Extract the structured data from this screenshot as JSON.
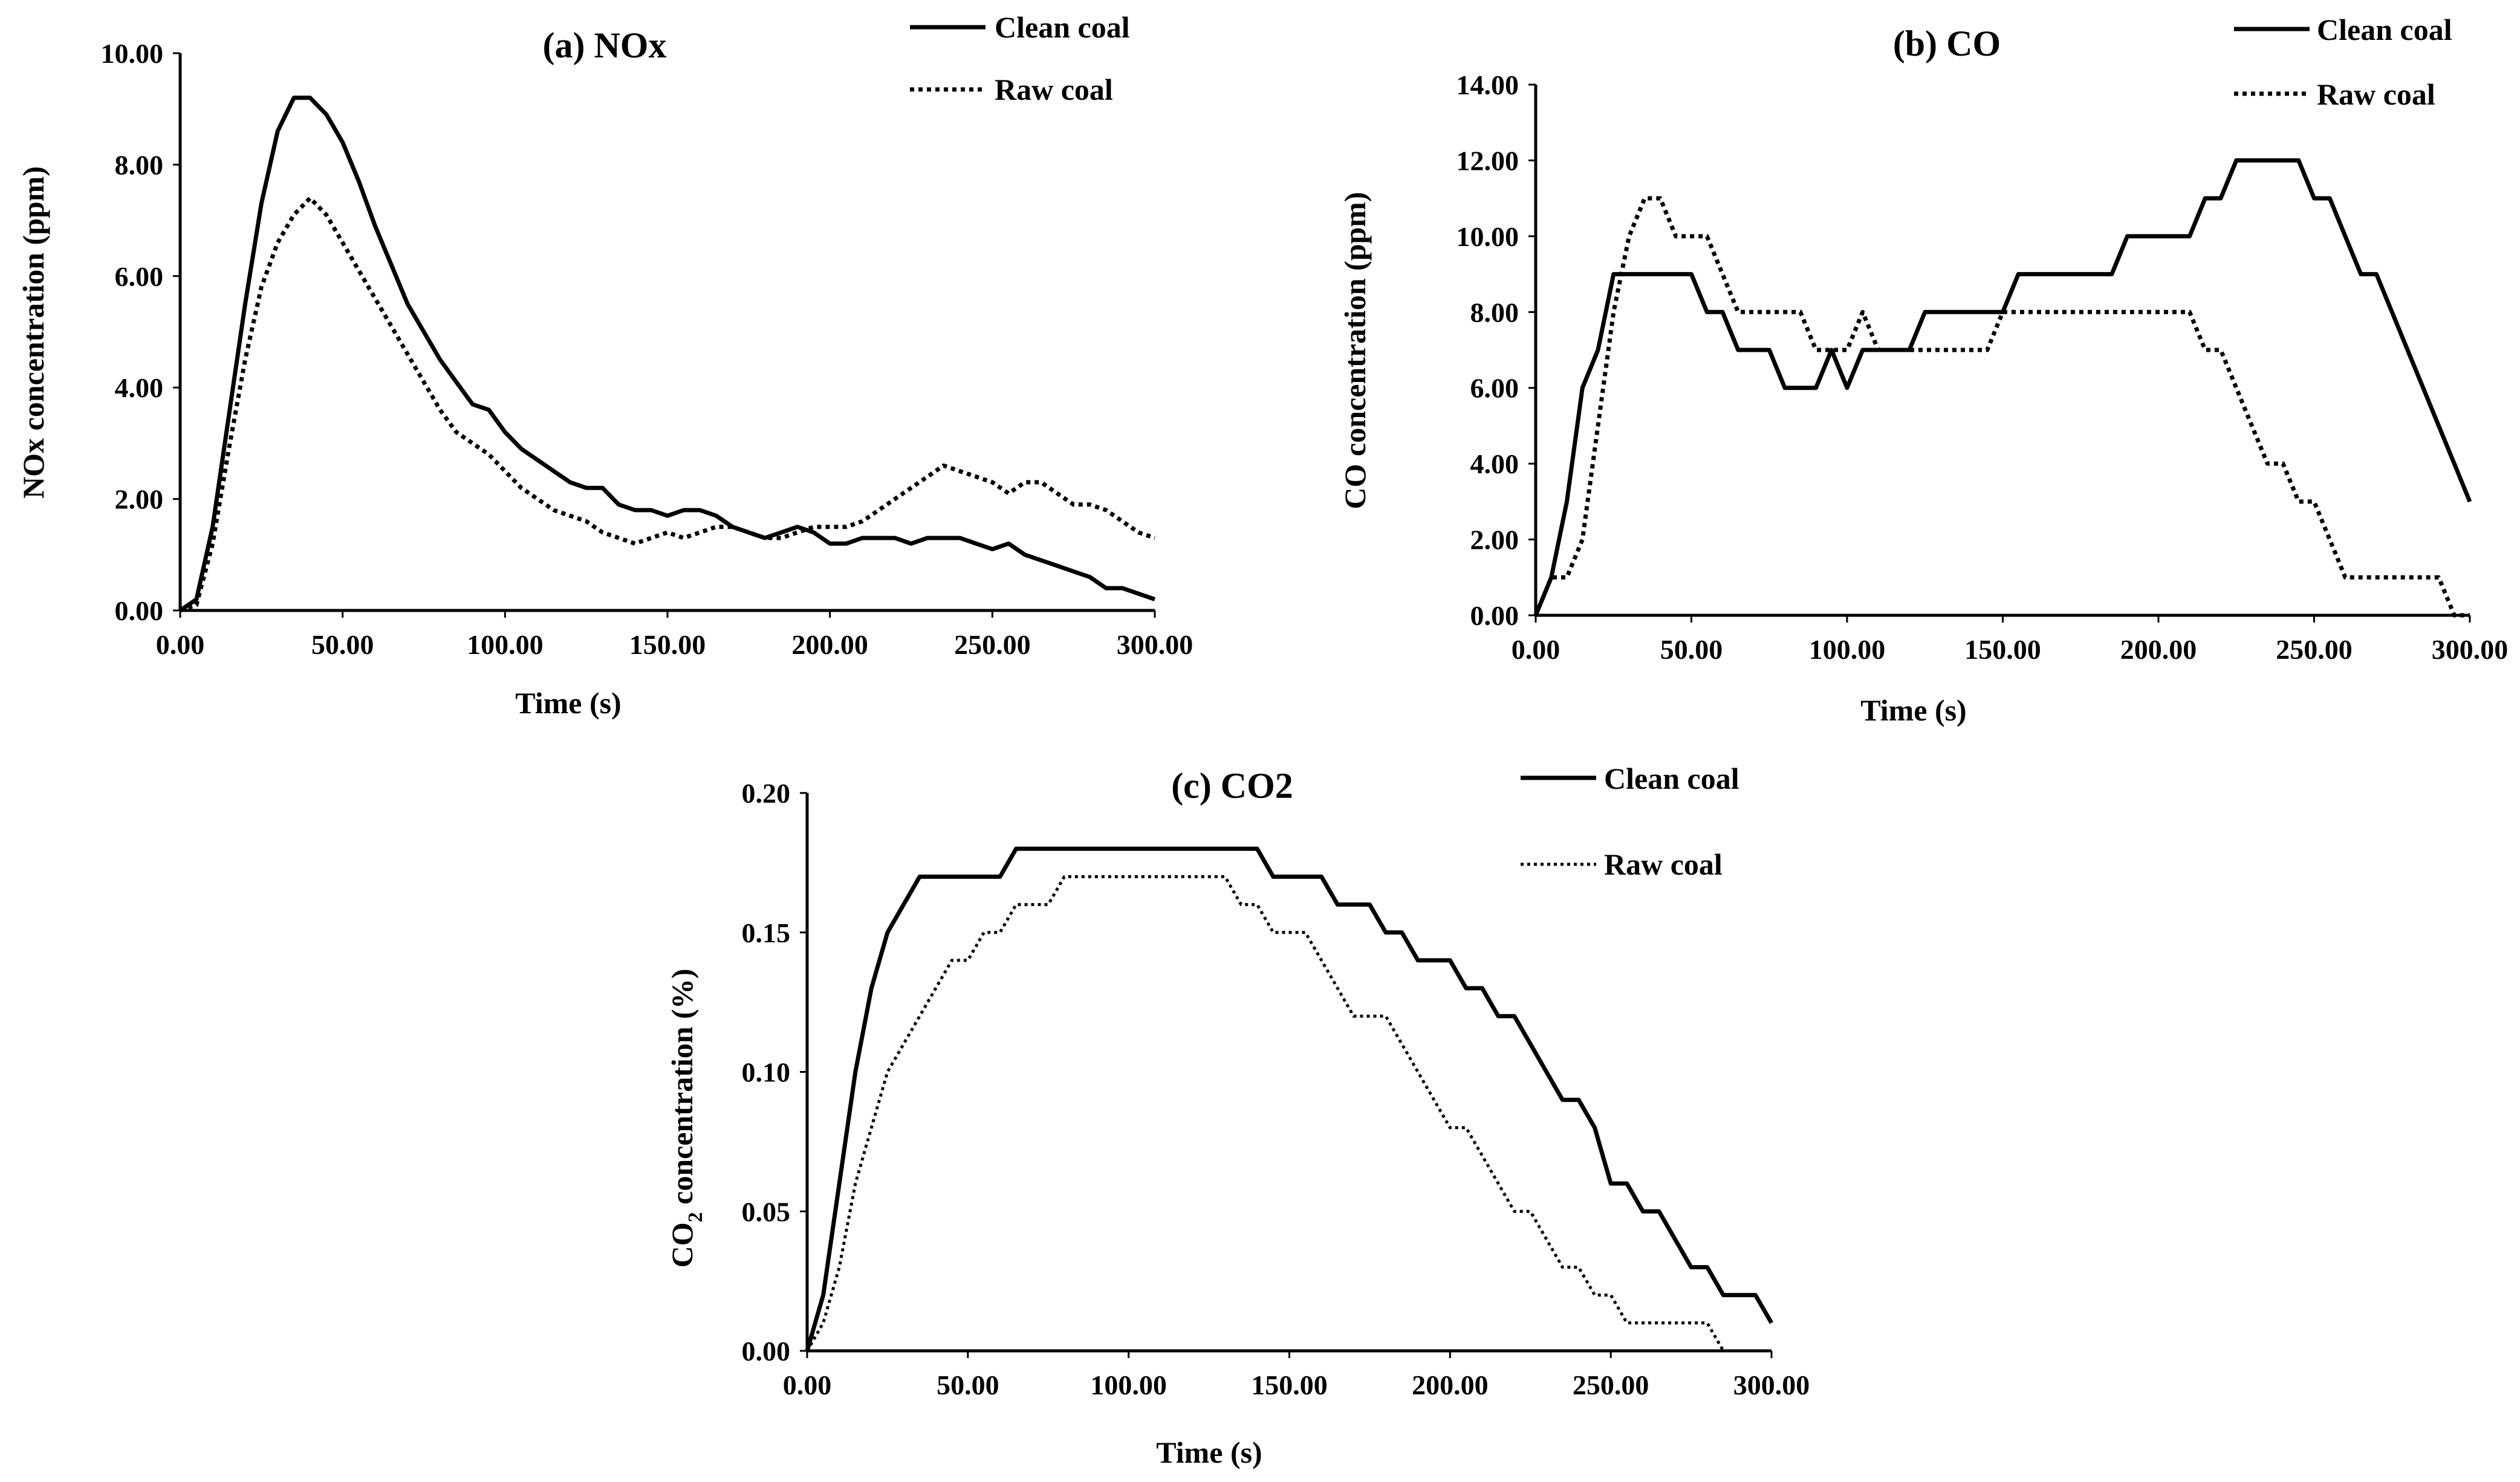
{
  "figure": {
    "colors": {
      "ink": "#000000",
      "background": "#ffffff"
    },
    "series_styles": {
      "clean": "solid",
      "raw": "dotted"
    }
  },
  "chart_data": [
    {
      "id": "nox",
      "type": "line",
      "title": "(a) NOx",
      "xlabel": "Time (s)",
      "ylabel": "NOx concentration (ppm)",
      "xlim": [
        0,
        300
      ],
      "ylim": [
        0,
        10
      ],
      "xticks": [
        "0.00",
        "50.00",
        "100.00",
        "150.00",
        "200.00",
        "250.00",
        "300.00"
      ],
      "yticks": [
        "0.00",
        "2.00",
        "4.00",
        "6.00",
        "8.00",
        "10.00"
      ],
      "legend": [
        "Clean coal",
        "Raw coal"
      ],
      "legend_position": "top-right",
      "series": [
        {
          "name": "Clean coal",
          "style": "solid",
          "x": [
            0,
            5,
            10,
            15,
            20,
            25,
            30,
            35,
            40,
            45,
            50,
            55,
            60,
            65,
            70,
            75,
            80,
            85,
            90,
            95,
            100,
            105,
            110,
            115,
            120,
            125,
            130,
            135,
            140,
            145,
            150,
            155,
            160,
            165,
            170,
            175,
            180,
            185,
            190,
            195,
            200,
            205,
            210,
            215,
            220,
            225,
            230,
            235,
            240,
            245,
            250,
            255,
            260,
            265,
            270,
            275,
            280,
            285,
            290,
            295,
            300
          ],
          "y": [
            0,
            0.2,
            1.5,
            3.5,
            5.5,
            7.3,
            8.6,
            9.2,
            9.2,
            8.9,
            8.4,
            7.7,
            6.9,
            6.2,
            5.5,
            5.0,
            4.5,
            4.1,
            3.7,
            3.6,
            3.2,
            2.9,
            2.7,
            2.5,
            2.3,
            2.2,
            2.2,
            1.9,
            1.8,
            1.8,
            1.7,
            1.8,
            1.8,
            1.7,
            1.5,
            1.4,
            1.3,
            1.4,
            1.5,
            1.4,
            1.2,
            1.2,
            1.3,
            1.3,
            1.3,
            1.2,
            1.3,
            1.3,
            1.3,
            1.2,
            1.1,
            1.2,
            1.0,
            0.9,
            0.8,
            0.7,
            0.6,
            0.4,
            0.4,
            0.3,
            0.2
          ]
        },
        {
          "name": "Raw coal",
          "style": "dotted",
          "x": [
            0,
            5,
            10,
            15,
            20,
            25,
            30,
            35,
            40,
            45,
            50,
            55,
            60,
            65,
            70,
            75,
            80,
            85,
            90,
            95,
            100,
            105,
            110,
            115,
            120,
            125,
            130,
            135,
            140,
            145,
            150,
            155,
            160,
            165,
            170,
            175,
            180,
            185,
            190,
            195,
            200,
            205,
            210,
            215,
            220,
            225,
            230,
            235,
            240,
            245,
            250,
            255,
            260,
            265,
            270,
            275,
            280,
            285,
            290,
            295,
            300
          ],
          "y": [
            0,
            0.1,
            1.2,
            2.9,
            4.5,
            5.8,
            6.6,
            7.1,
            7.4,
            7.1,
            6.6,
            6.1,
            5.6,
            5.1,
            4.6,
            4.1,
            3.6,
            3.2,
            3.0,
            2.8,
            2.5,
            2.2,
            2.0,
            1.8,
            1.7,
            1.6,
            1.4,
            1.3,
            1.2,
            1.3,
            1.4,
            1.3,
            1.4,
            1.5,
            1.5,
            1.4,
            1.3,
            1.3,
            1.4,
            1.5,
            1.5,
            1.5,
            1.6,
            1.8,
            2.0,
            2.2,
            2.4,
            2.6,
            2.5,
            2.4,
            2.3,
            2.1,
            2.3,
            2.3,
            2.1,
            1.9,
            1.9,
            1.8,
            1.6,
            1.4,
            1.3
          ]
        }
      ]
    },
    {
      "id": "co",
      "type": "line",
      "title": "(b) CO",
      "xlabel": "Time (s)",
      "ylabel": "CO concentration  (ppm)",
      "xlim": [
        0,
        300
      ],
      "ylim": [
        0,
        14
      ],
      "xticks": [
        "0.00",
        "50.00",
        "100.00",
        "150.00",
        "200.00",
        "250.00",
        "300.00"
      ],
      "yticks": [
        "0.00",
        "2.00",
        "4.00",
        "6.00",
        "8.00",
        "10.00",
        "12.00",
        "14.00"
      ],
      "legend": [
        "Clean coal",
        "Raw coal"
      ],
      "legend_position": "top-right",
      "series": [
        {
          "name": "Clean coal",
          "style": "solid",
          "x": [
            0,
            5,
            10,
            15,
            20,
            25,
            30,
            35,
            40,
            45,
            50,
            55,
            60,
            65,
            70,
            75,
            80,
            85,
            90,
            95,
            100,
            105,
            110,
            115,
            120,
            125,
            130,
            135,
            140,
            145,
            150,
            155,
            160,
            165,
            170,
            175,
            180,
            185,
            190,
            195,
            200,
            205,
            210,
            215,
            220,
            225,
            230,
            235,
            240,
            245,
            250,
            255,
            260,
            265,
            270,
            275,
            280,
            285,
            290,
            295,
            300
          ],
          "y": [
            0,
            1,
            3,
            6,
            7,
            9,
            9,
            9,
            9,
            9,
            9,
            8,
            8,
            7,
            7,
            7,
            6,
            6,
            6,
            7,
            6,
            7,
            7,
            7,
            7,
            8,
            8,
            8,
            8,
            8,
            8,
            9,
            9,
            9,
            9,
            9,
            9,
            9,
            10,
            10,
            10,
            10,
            10,
            11,
            11,
            12,
            12,
            12,
            12,
            12,
            11,
            11,
            10,
            9,
            9,
            8,
            7,
            6,
            5,
            4,
            3
          ]
        },
        {
          "name": "Raw coal",
          "style": "dotted",
          "x": [
            0,
            5,
            10,
            15,
            20,
            25,
            30,
            35,
            40,
            45,
            50,
            55,
            60,
            65,
            70,
            75,
            80,
            85,
            90,
            95,
            100,
            105,
            110,
            115,
            120,
            125,
            130,
            135,
            140,
            145,
            150,
            155,
            160,
            165,
            170,
            175,
            180,
            185,
            190,
            195,
            200,
            205,
            210,
            215,
            220,
            225,
            230,
            235,
            240,
            245,
            250,
            255,
            260,
            265,
            270,
            275,
            280,
            285,
            290,
            295,
            300
          ],
          "y": [
            0,
            1,
            1,
            2,
            5,
            8,
            10,
            11,
            11,
            10,
            10,
            10,
            9,
            8,
            8,
            8,
            8,
            8,
            7,
            7,
            7,
            8,
            7,
            7,
            7,
            7,
            7,
            7,
            7,
            7,
            8,
            8,
            8,
            8,
            8,
            8,
            8,
            8,
            8,
            8,
            8,
            8,
            8,
            7,
            7,
            6,
            5,
            4,
            4,
            3,
            3,
            2,
            1,
            1,
            1,
            1,
            1,
            1,
            1,
            0,
            0
          ]
        }
      ]
    },
    {
      "id": "co2",
      "type": "line",
      "title": "(c) CO2",
      "xlabel": "Time (s)",
      "ylabel_main": "CO",
      "ylabel_sub": "2",
      "ylabel_rest": " concentration  (%)",
      "xlim": [
        0,
        300
      ],
      "ylim": [
        0,
        0.2
      ],
      "xticks": [
        "0.00",
        "50.00",
        "100.00",
        "150.00",
        "200.00",
        "250.00",
        "300.00"
      ],
      "yticks": [
        "0.00",
        "0.05",
        "0.10",
        "0.15",
        "0.20"
      ],
      "legend": [
        "Clean coal",
        "Raw coal"
      ],
      "legend_position": "top-right",
      "series": [
        {
          "name": "Clean coal",
          "style": "solid",
          "x": [
            0,
            5,
            10,
            15,
            20,
            25,
            30,
            35,
            40,
            45,
            50,
            55,
            60,
            65,
            70,
            75,
            80,
            85,
            90,
            95,
            100,
            105,
            110,
            115,
            120,
            125,
            130,
            135,
            140,
            145,
            150,
            155,
            160,
            165,
            170,
            175,
            180,
            185,
            190,
            195,
            200,
            205,
            210,
            215,
            220,
            225,
            230,
            235,
            240,
            245,
            250,
            255,
            260,
            265,
            270,
            275,
            280,
            285,
            290,
            295,
            300
          ],
          "y": [
            0,
            0.02,
            0.06,
            0.1,
            0.13,
            0.15,
            0.16,
            0.17,
            0.17,
            0.17,
            0.17,
            0.17,
            0.17,
            0.18,
            0.18,
            0.18,
            0.18,
            0.18,
            0.18,
            0.18,
            0.18,
            0.18,
            0.18,
            0.18,
            0.18,
            0.18,
            0.18,
            0.18,
            0.18,
            0.17,
            0.17,
            0.17,
            0.17,
            0.16,
            0.16,
            0.16,
            0.15,
            0.15,
            0.14,
            0.14,
            0.14,
            0.13,
            0.13,
            0.12,
            0.12,
            0.11,
            0.1,
            0.09,
            0.09,
            0.08,
            0.06,
            0.06,
            0.05,
            0.05,
            0.04,
            0.03,
            0.03,
            0.02,
            0.02,
            0.02,
            0.01
          ]
        },
        {
          "name": "Raw coal",
          "style": "dotted",
          "x": [
            0,
            5,
            10,
            15,
            20,
            25,
            30,
            35,
            40,
            45,
            50,
            55,
            60,
            65,
            70,
            75,
            80,
            85,
            90,
            95,
            100,
            105,
            110,
            115,
            120,
            125,
            130,
            135,
            140,
            145,
            150,
            155,
            160,
            165,
            170,
            175,
            180,
            185,
            190,
            195,
            200,
            205,
            210,
            215,
            220,
            225,
            230,
            235,
            240,
            245,
            250,
            255,
            260,
            265,
            270,
            275,
            280,
            285
          ],
          "y": [
            0,
            0.01,
            0.03,
            0.06,
            0.08,
            0.1,
            0.11,
            0.12,
            0.13,
            0.14,
            0.14,
            0.15,
            0.15,
            0.16,
            0.16,
            0.16,
            0.17,
            0.17,
            0.17,
            0.17,
            0.17,
            0.17,
            0.17,
            0.17,
            0.17,
            0.17,
            0.17,
            0.16,
            0.16,
            0.15,
            0.15,
            0.15,
            0.14,
            0.13,
            0.12,
            0.12,
            0.12,
            0.11,
            0.1,
            0.09,
            0.08,
            0.08,
            0.07,
            0.06,
            0.05,
            0.05,
            0.04,
            0.03,
            0.03,
            0.02,
            0.02,
            0.01,
            0.01,
            0.01,
            0.01,
            0.01,
            0.01,
            0.0
          ]
        }
      ]
    }
  ]
}
